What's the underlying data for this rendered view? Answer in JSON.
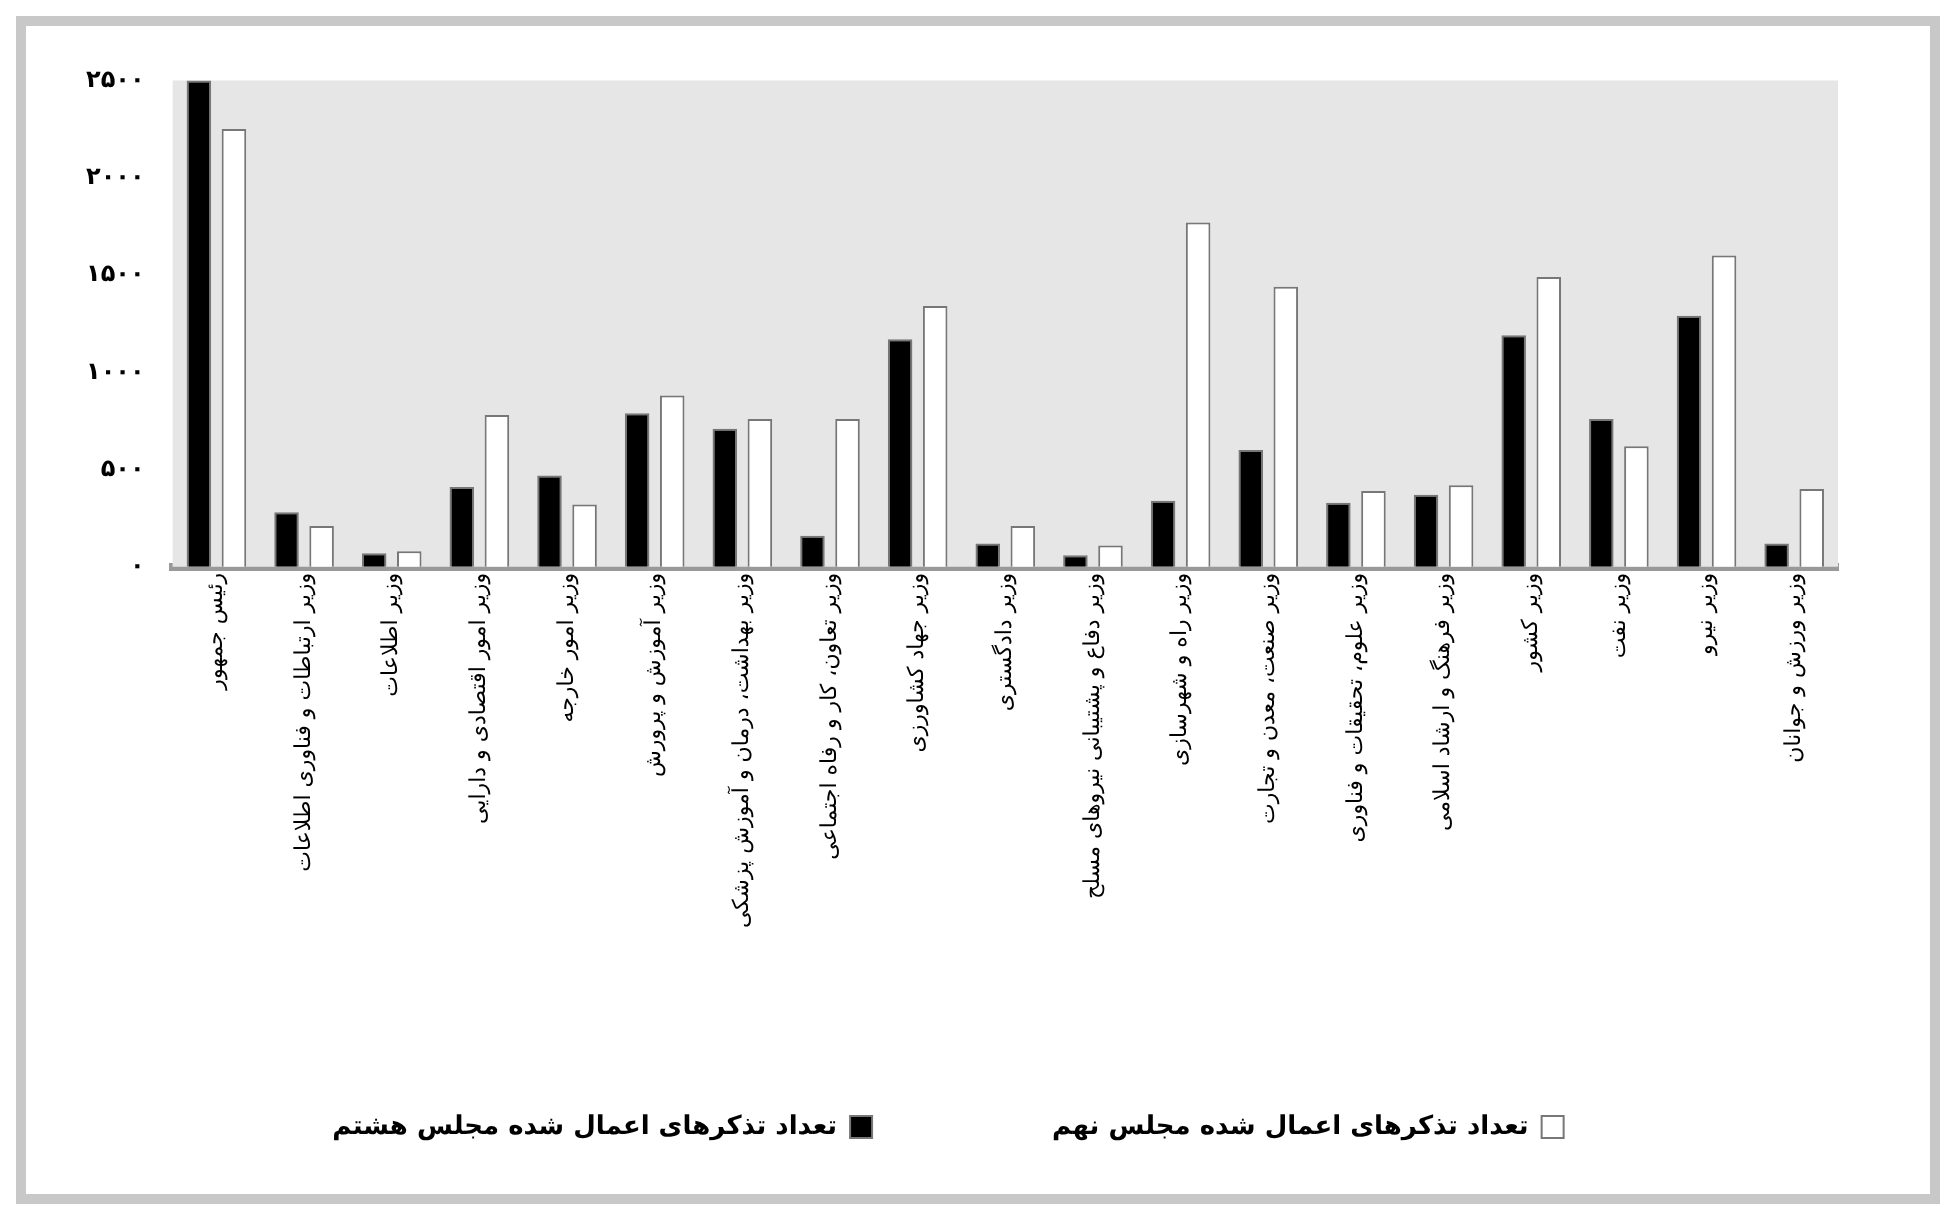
{
  "chart_data": {
    "type": "bar",
    "categories": [
      "رئیس جمهور",
      "وزیر ارتباطات و فناوری اطلاعات",
      "وزیر اطلاعات",
      "وزیر امور اقتصادی و دارایی",
      "وزیر امور خارجه",
      "وزیر آموزش و پرورش",
      "وزیر بهداشت، درمان و آموزش پزشکی",
      "وزیر تعاون، کار و رفاه اجتماعی",
      "وزیر جهاد کشاورزی",
      "وزیر دادگستری",
      "وزیر دفاع و پشتیبانی نیروهای مسلح",
      "وزیر راه و شهرسازی",
      "وزیر صنعت، معدن و تجارت",
      "وزیر علوم، تحقیقات و فناوری",
      "وزیر فرهنگ و ارشاد اسلامی",
      "وزیر کشور",
      "وزیر نفت",
      "وزیر نیرو",
      "وزیر ورزش و جوانان"
    ],
    "series": [
      {
        "name": "تعداد تذکرهای اعمال شده مجلس هشتم",
        "color": "#000000",
        "values": [
          2500,
          280,
          70,
          410,
          470,
          790,
          710,
          160,
          1170,
          120,
          60,
          340,
          600,
          330,
          370,
          1190,
          760,
          1290,
          120
        ]
      },
      {
        "name": "تعداد تذکرهای اعمال شده مجلس نهم",
        "color": "#ffffff",
        "values": [
          2250,
          210,
          80,
          780,
          320,
          880,
          760,
          760,
          1340,
          210,
          110,
          1770,
          1440,
          390,
          420,
          1490,
          620,
          1600,
          400
        ]
      }
    ],
    "ylim": [
      0,
      2500
    ],
    "yticks": [
      {
        "value": 0,
        "label": "۰"
      },
      {
        "value": 500,
        "label": "۵۰۰"
      },
      {
        "value": 1000,
        "label": "۱۰۰۰"
      },
      {
        "value": 1500,
        "label": "۱۵۰۰"
      },
      {
        "value": 2000,
        "label": "۲۰۰۰"
      },
      {
        "value": 2500,
        "label": "۲۵۰۰"
      }
    ],
    "grid": false,
    "legend": "bottom"
  }
}
